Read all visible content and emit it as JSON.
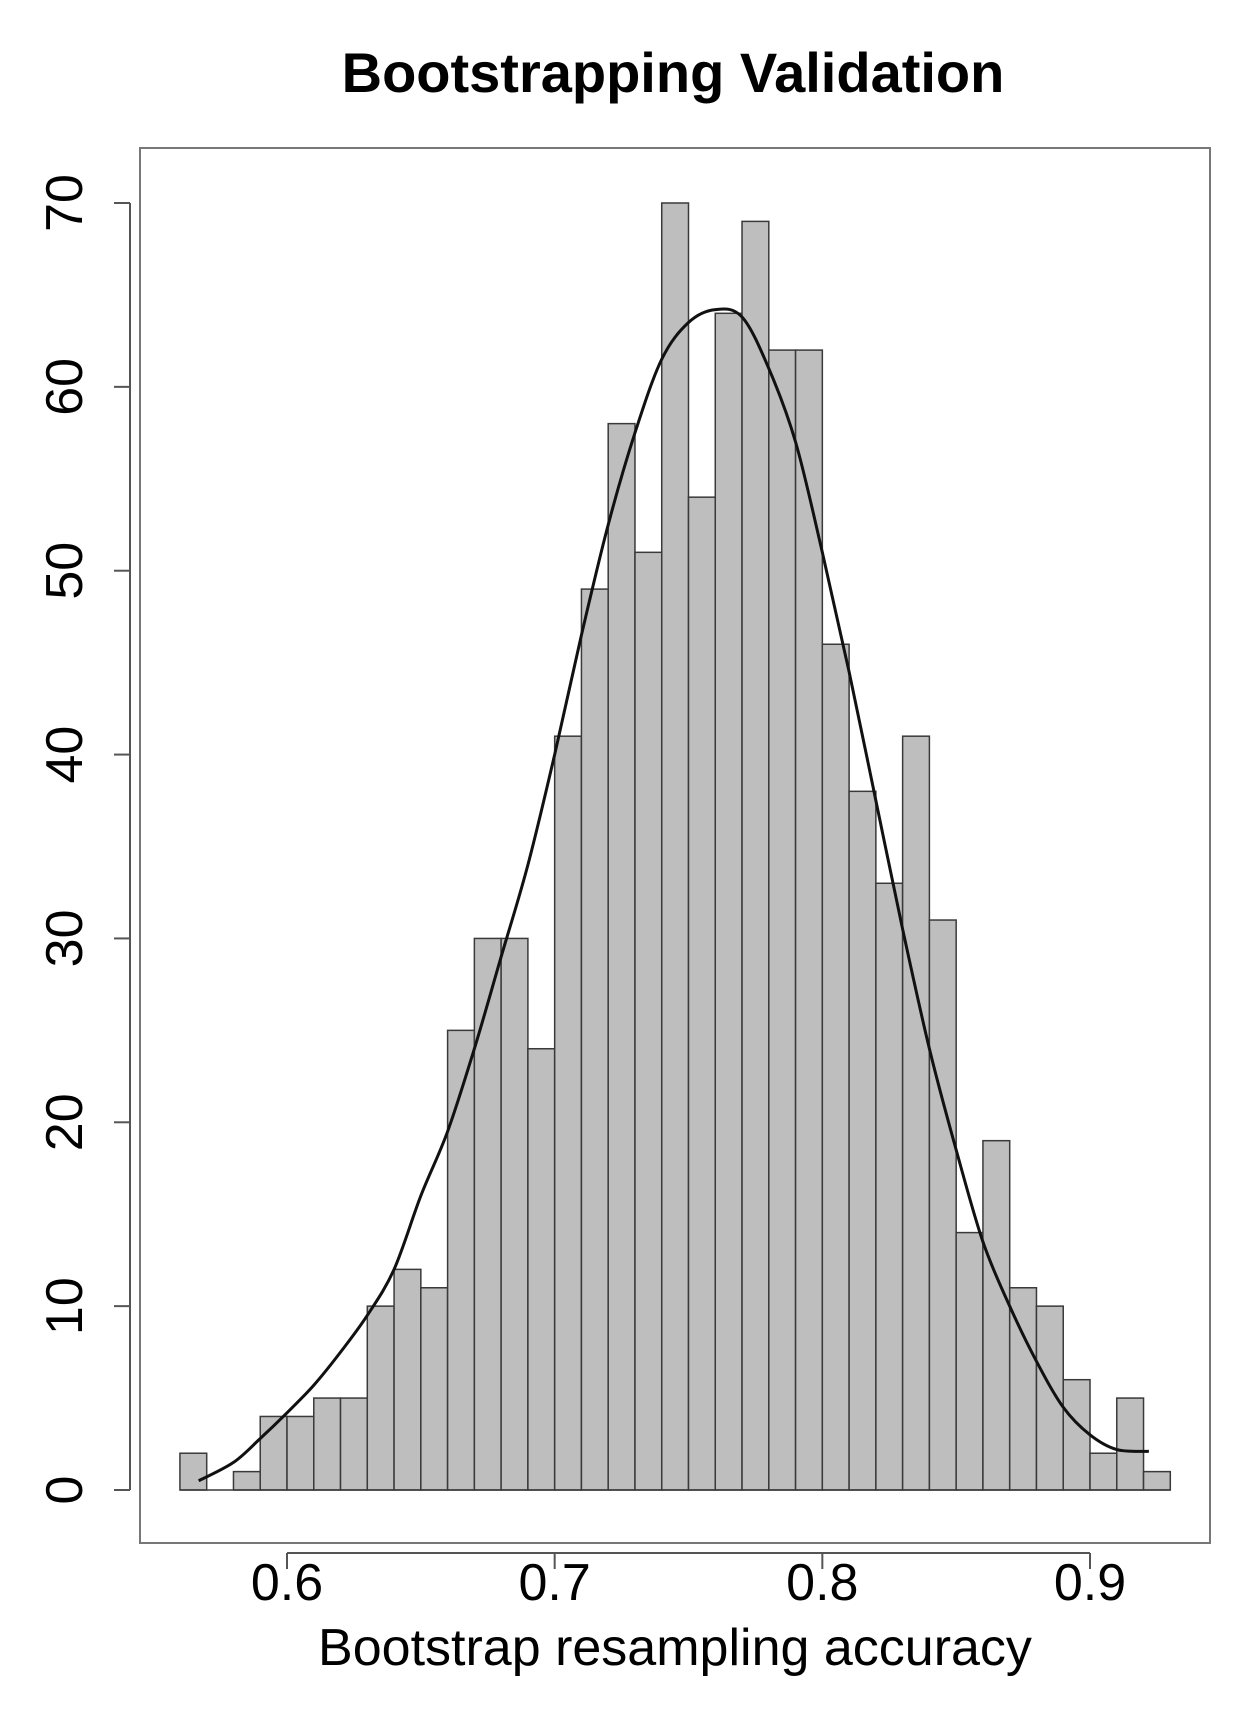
{
  "chart_data": {
    "type": "bar",
    "subtype": "histogram",
    "title": "Bootstrapping Validation",
    "xlabel": "Bootstrap resampling accuracy",
    "ylabel": "",
    "xlim": [
      0.555,
      0.935
    ],
    "ylim": [
      0,
      70
    ],
    "bin_width": 0.01,
    "x_ticks": [
      {
        "value": 0.6,
        "label": "0.6"
      },
      {
        "value": 0.7,
        "label": "0.7"
      },
      {
        "value": 0.8,
        "label": "0.8"
      },
      {
        "value": 0.9,
        "label": "0.9"
      }
    ],
    "y_ticks": [
      {
        "value": 0,
        "label": "0"
      },
      {
        "value": 10,
        "label": "10"
      },
      {
        "value": 20,
        "label": "20"
      },
      {
        "value": 30,
        "label": "30"
      },
      {
        "value": 40,
        "label": "40"
      },
      {
        "value": 50,
        "label": "50"
      },
      {
        "value": 60,
        "label": "60"
      },
      {
        "value": 70,
        "label": "70"
      }
    ],
    "bins": [
      {
        "start": 0.56,
        "end": 0.57,
        "count": 2
      },
      {
        "start": 0.57,
        "end": 0.58,
        "count": 0
      },
      {
        "start": 0.58,
        "end": 0.59,
        "count": 1
      },
      {
        "start": 0.59,
        "end": 0.6,
        "count": 4
      },
      {
        "start": 0.6,
        "end": 0.61,
        "count": 4
      },
      {
        "start": 0.61,
        "end": 0.62,
        "count": 5
      },
      {
        "start": 0.62,
        "end": 0.63,
        "count": 5
      },
      {
        "start": 0.63,
        "end": 0.64,
        "count": 10
      },
      {
        "start": 0.64,
        "end": 0.65,
        "count": 12
      },
      {
        "start": 0.65,
        "end": 0.66,
        "count": 11
      },
      {
        "start": 0.66,
        "end": 0.67,
        "count": 25
      },
      {
        "start": 0.67,
        "end": 0.68,
        "count": 30
      },
      {
        "start": 0.68,
        "end": 0.69,
        "count": 30
      },
      {
        "start": 0.69,
        "end": 0.7,
        "count": 24
      },
      {
        "start": 0.7,
        "end": 0.71,
        "count": 41
      },
      {
        "start": 0.71,
        "end": 0.72,
        "count": 49
      },
      {
        "start": 0.72,
        "end": 0.73,
        "count": 58
      },
      {
        "start": 0.73,
        "end": 0.74,
        "count": 51
      },
      {
        "start": 0.74,
        "end": 0.75,
        "count": 70
      },
      {
        "start": 0.75,
        "end": 0.76,
        "count": 54
      },
      {
        "start": 0.76,
        "end": 0.77,
        "count": 64
      },
      {
        "start": 0.77,
        "end": 0.78,
        "count": 69
      },
      {
        "start": 0.78,
        "end": 0.79,
        "count": 62
      },
      {
        "start": 0.79,
        "end": 0.8,
        "count": 62
      },
      {
        "start": 0.8,
        "end": 0.81,
        "count": 46
      },
      {
        "start": 0.81,
        "end": 0.82,
        "count": 38
      },
      {
        "start": 0.82,
        "end": 0.83,
        "count": 33
      },
      {
        "start": 0.83,
        "end": 0.84,
        "count": 41
      },
      {
        "start": 0.84,
        "end": 0.85,
        "count": 31
      },
      {
        "start": 0.85,
        "end": 0.86,
        "count": 14
      },
      {
        "start": 0.86,
        "end": 0.87,
        "count": 19
      },
      {
        "start": 0.87,
        "end": 0.88,
        "count": 11
      },
      {
        "start": 0.88,
        "end": 0.89,
        "count": 10
      },
      {
        "start": 0.89,
        "end": 0.9,
        "count": 6
      },
      {
        "start": 0.9,
        "end": 0.91,
        "count": 2
      },
      {
        "start": 0.91,
        "end": 0.92,
        "count": 5
      },
      {
        "start": 0.92,
        "end": 0.93,
        "count": 1
      }
    ],
    "density_curve": {
      "type": "line",
      "points": [
        [
          0.567,
          0.5
        ],
        [
          0.58,
          1.5
        ],
        [
          0.59,
          2.8
        ],
        [
          0.6,
          4.2
        ],
        [
          0.61,
          5.7
        ],
        [
          0.62,
          7.5
        ],
        [
          0.63,
          9.5
        ],
        [
          0.64,
          12.0
        ],
        [
          0.65,
          16.0
        ],
        [
          0.66,
          19.5
        ],
        [
          0.67,
          24.0
        ],
        [
          0.68,
          29.0
        ],
        [
          0.69,
          34.0
        ],
        [
          0.7,
          40.0
        ],
        [
          0.71,
          46.5
        ],
        [
          0.72,
          52.5
        ],
        [
          0.73,
          57.5
        ],
        [
          0.74,
          61.5
        ],
        [
          0.75,
          63.5
        ],
        [
          0.76,
          64.2
        ],
        [
          0.77,
          63.8
        ],
        [
          0.78,
          61.0
        ],
        [
          0.79,
          57.0
        ],
        [
          0.8,
          51.0
        ],
        [
          0.81,
          44.5
        ],
        [
          0.82,
          37.5
        ],
        [
          0.83,
          30.5
        ],
        [
          0.84,
          24.0
        ],
        [
          0.85,
          18.5
        ],
        [
          0.86,
          13.5
        ],
        [
          0.87,
          10.0
        ],
        [
          0.88,
          7.0
        ],
        [
          0.89,
          4.5
        ],
        [
          0.9,
          3.0
        ],
        [
          0.91,
          2.2
        ],
        [
          0.922,
          2.1
        ]
      ]
    },
    "colors": {
      "bar_fill": "#bebebe",
      "bar_stroke": "#3a3a3a",
      "curve": "#111111",
      "frame": "#777777",
      "background": "#ffffff"
    },
    "grid": false,
    "legend": "none"
  }
}
